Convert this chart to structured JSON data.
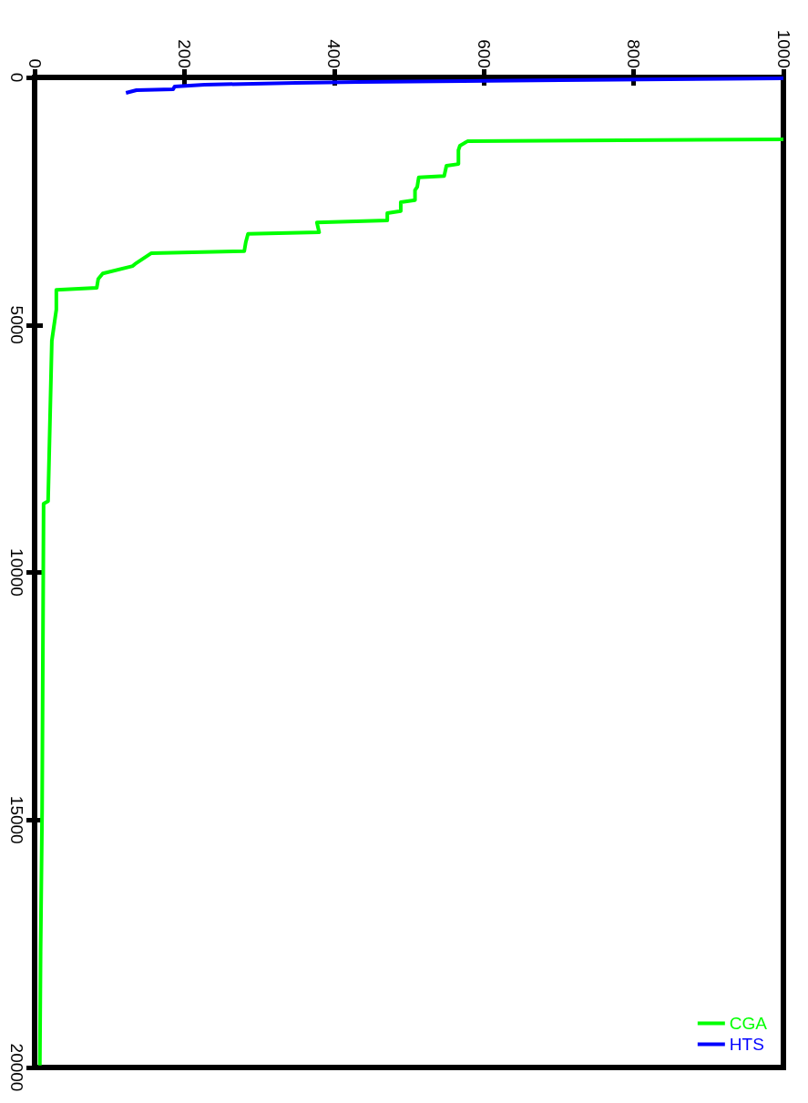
{
  "chart_data": {
    "type": "line",
    "xlim": [
      0,
      1000
    ],
    "ylim": [
      20000,
      0
    ],
    "xticks": [
      0,
      200,
      400,
      600,
      800,
      1000
    ],
    "yticks": [
      0,
      5000,
      10000,
      15000,
      20000
    ],
    "grid": false,
    "legend": "bottom right",
    "marker": "none",
    "line_style": "solid",
    "series": [
      {
        "name": "CGA",
        "color": "#00ff00",
        "x": [
          1000,
          578,
          568,
          566,
          566,
          550,
          547,
          513,
          511,
          508,
          508,
          489,
          489,
          471,
          471,
          377,
          380,
          285,
          282,
          280,
          156,
          134,
          131,
          91,
          85,
          83,
          29,
          29,
          23,
          18,
          12,
          10,
          8,
          7
        ],
        "values": [
          1250,
          1290,
          1380,
          1470,
          1750,
          1785,
          1990,
          2020,
          2210,
          2280,
          2480,
          2520,
          2700,
          2740,
          2890,
          2930,
          3130,
          3160,
          3330,
          3510,
          3550,
          3770,
          3810,
          3960,
          4070,
          4250,
          4290,
          4690,
          5320,
          8560,
          8610,
          14810,
          17660,
          19960
        ]
      },
      {
        "name": "HTS",
        "color": "#0000ff",
        "x": [
          1000,
          702,
          434,
          349,
          227,
          187,
          185,
          136,
          122
        ],
        "values": [
          18,
          55,
          92,
          110,
          147,
          184,
          239,
          258,
          313
        ]
      }
    ]
  }
}
